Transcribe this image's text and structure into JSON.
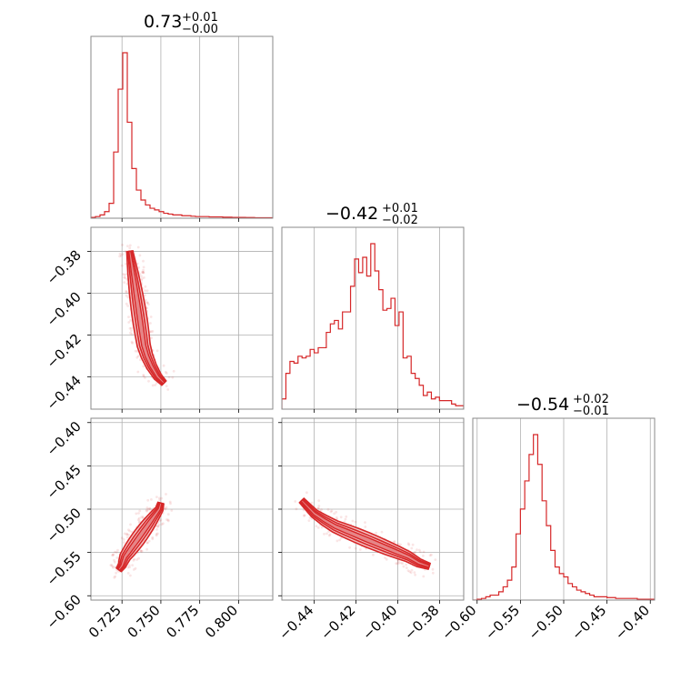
{
  "colors": {
    "accent": "#d62728",
    "fill": "#f2b5b7",
    "grid": "#b0b0b0",
    "frame": "#8a8a8a"
  },
  "chart_data": {
    "type": "corner",
    "parameters": [
      {
        "title": {
          "median": "0.73",
          "upper": "+0.01",
          "lower": "−0.00"
        },
        "range": [
          0.705,
          0.822
        ],
        "ticks": [
          0.725,
          0.75,
          0.775,
          0.8
        ],
        "tick_labels": [
          "0.725",
          "0.750",
          "0.775",
          "0.800"
        ]
      },
      {
        "title": {
          "median": "−0.42",
          "upper": "+0.01",
          "lower": "−0.02"
        },
        "range": [
          -0.4555,
          -0.3685
        ],
        "ticks": [
          -0.44,
          -0.42,
          -0.4,
          -0.38
        ],
        "tick_labels": [
          "−0.44",
          "−0.42",
          "−0.40",
          "−0.38"
        ]
      },
      {
        "title": {
          "median": "−0.54",
          "upper": "+0.02",
          "lower": "−0.01"
        },
        "range": [
          -0.605,
          -0.395
        ],
        "ticks": [
          -0.6,
          -0.55,
          -0.5,
          -0.45,
          -0.4
        ],
        "tick_labels": [
          "−0.60",
          "−0.55",
          "−0.50",
          "−0.45",
          "−0.40"
        ]
      }
    ],
    "histograms": [
      {
        "param": 0,
        "values": [
          0.5,
          1,
          2,
          4,
          9,
          40,
          78,
          100,
          58,
          30,
          17,
          11,
          8,
          6,
          5,
          4,
          3,
          2.5,
          2,
          2,
          1.5,
          1.5,
          1.2,
          1,
          1,
          1,
          0.8,
          0.8,
          0.8,
          0.6,
          0.6,
          0.5,
          0.5,
          0.5,
          0.4,
          0.4,
          0.3,
          0.3,
          0.3,
          0.3
        ]
      },
      {
        "param": 1,
        "values": [
          6,
          21,
          28,
          27,
          31,
          30,
          31,
          35,
          33,
          36,
          36,
          45,
          50,
          52,
          47,
          57,
          57,
          72,
          88,
          80,
          89,
          78,
          97,
          81,
          70,
          58,
          59,
          65,
          49,
          57,
          30,
          31,
          21,
          18,
          14,
          8,
          10,
          6,
          7,
          5,
          5,
          5,
          3,
          2,
          2
        ]
      },
      {
        "param": 2,
        "values": [
          0,
          0.5,
          1,
          2,
          3,
          3,
          5,
          8,
          12,
          20,
          40,
          55,
          72,
          88,
          100,
          82,
          60,
          45,
          30,
          20,
          16,
          14,
          10,
          8,
          6,
          5,
          4,
          3,
          2,
          2,
          2,
          1.5,
          1.5,
          1,
          1,
          1,
          1,
          1,
          0.5,
          0.5,
          0.5,
          0.5
        ]
      }
    ],
    "density_tracks": [
      {
        "x_param": 0,
        "y_param": 1,
        "points": [
          [
            0.73,
            -0.38
          ],
          [
            0.731,
            -0.385
          ],
          [
            0.732,
            -0.39
          ],
          [
            0.733,
            -0.395
          ],
          [
            0.734,
            -0.4
          ],
          [
            0.735,
            -0.405
          ],
          [
            0.736,
            -0.41
          ],
          [
            0.737,
            -0.415
          ],
          [
            0.738,
            -0.42
          ],
          [
            0.739,
            -0.425
          ],
          [
            0.741,
            -0.43
          ],
          [
            0.744,
            -0.435
          ],
          [
            0.748,
            -0.44
          ],
          [
            0.752,
            -0.443
          ]
        ]
      },
      {
        "x_param": 0,
        "y_param": 2,
        "points": [
          [
            0.723,
            -0.57
          ],
          [
            0.725,
            -0.565
          ],
          [
            0.726,
            -0.56
          ],
          [
            0.727,
            -0.555
          ],
          [
            0.729,
            -0.55
          ],
          [
            0.731,
            -0.545
          ],
          [
            0.733,
            -0.54
          ],
          [
            0.735,
            -0.535
          ],
          [
            0.737,
            -0.53
          ],
          [
            0.739,
            -0.525
          ],
          [
            0.741,
            -0.52
          ],
          [
            0.743,
            -0.515
          ],
          [
            0.745,
            -0.51
          ],
          [
            0.747,
            -0.505
          ],
          [
            0.749,
            -0.5
          ],
          [
            0.75,
            -0.493
          ]
        ]
      },
      {
        "x_param": 1,
        "y_param": 2,
        "points": [
          [
            -0.446,
            -0.49
          ],
          [
            -0.44,
            -0.505
          ],
          [
            -0.435,
            -0.513
          ],
          [
            -0.43,
            -0.52
          ],
          [
            -0.425,
            -0.525
          ],
          [
            -0.42,
            -0.53
          ],
          [
            -0.415,
            -0.535
          ],
          [
            -0.41,
            -0.54
          ],
          [
            -0.405,
            -0.545
          ],
          [
            -0.4,
            -0.55
          ],
          [
            -0.395,
            -0.555
          ],
          [
            -0.39,
            -0.562
          ],
          [
            -0.385,
            -0.566
          ]
        ]
      }
    ],
    "grid": true,
    "xlabel": "",
    "ylabel": ""
  }
}
